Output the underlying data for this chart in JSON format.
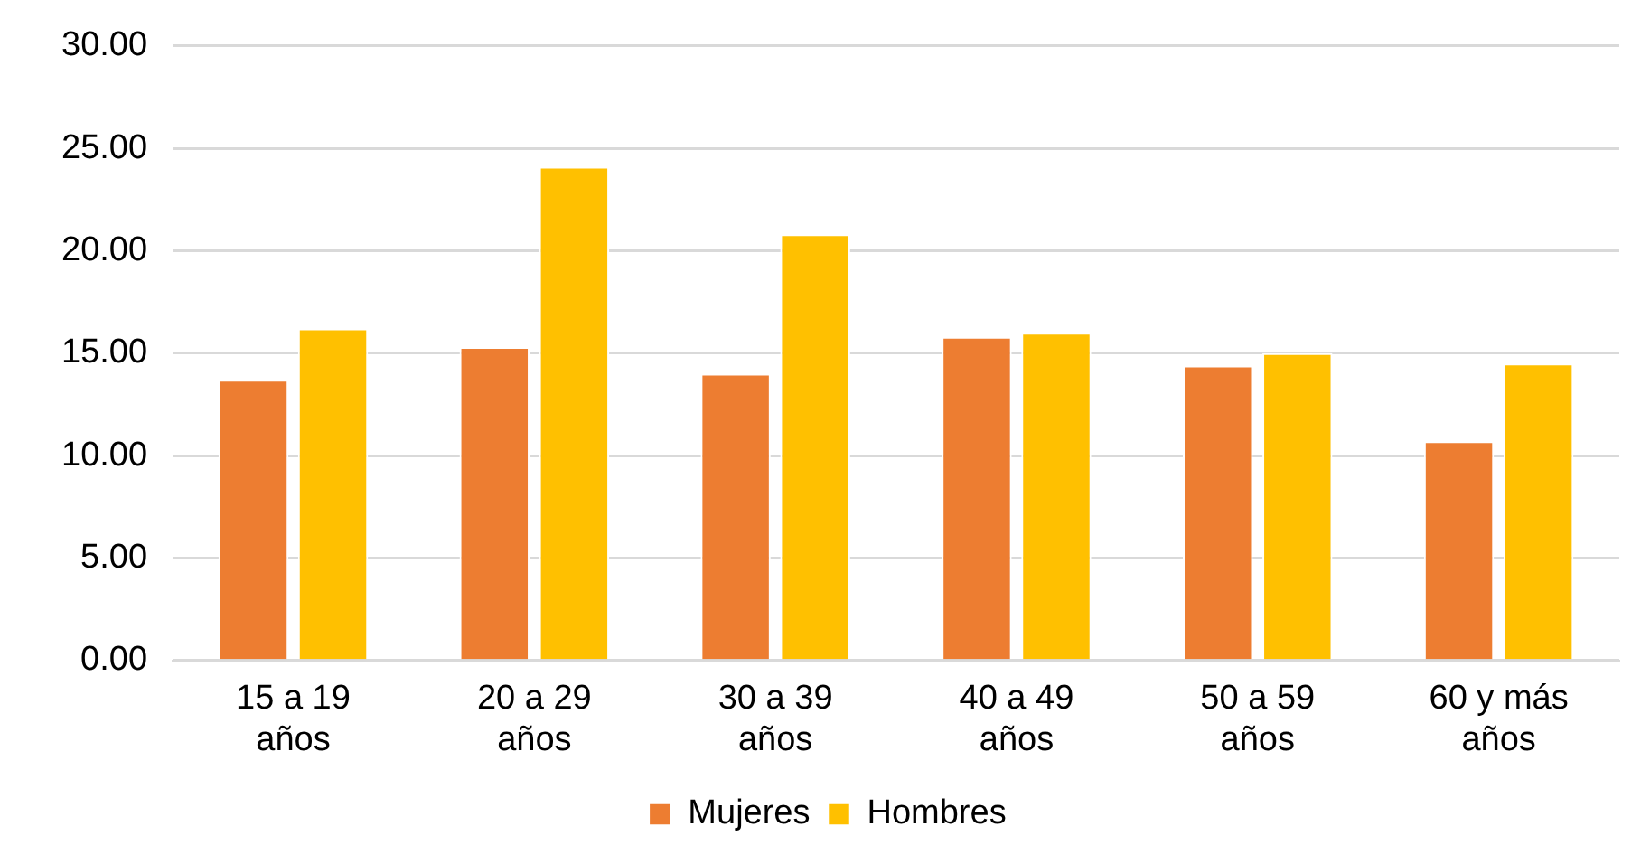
{
  "chart_data": {
    "type": "bar",
    "categories": [
      "15 a 19 años",
      "20 a 29 años",
      "30 a 39 años",
      "40 a 49 años",
      "50 a 59 años",
      "60 y más años"
    ],
    "series": [
      {
        "name": "Mujeres",
        "color": "#ed7d31",
        "values": [
          13.7,
          15.3,
          14.0,
          15.8,
          14.4,
          10.7
        ]
      },
      {
        "name": "Hombres",
        "color": "#ffc000",
        "values": [
          16.2,
          24.1,
          20.8,
          16.0,
          15.0,
          14.5
        ]
      }
    ],
    "ylim": [
      0,
      30
    ],
    "yticks": [
      {
        "value": 0,
        "label": "0.00"
      },
      {
        "value": 5,
        "label": "5.00"
      },
      {
        "value": 10,
        "label": "10.00"
      },
      {
        "value": 15,
        "label": "15.00"
      },
      {
        "value": 20,
        "label": "20.00"
      },
      {
        "value": 25,
        "label": "25.00"
      },
      {
        "value": 30,
        "label": "30.00"
      }
    ],
    "grid": "y",
    "legend": "bottom"
  }
}
